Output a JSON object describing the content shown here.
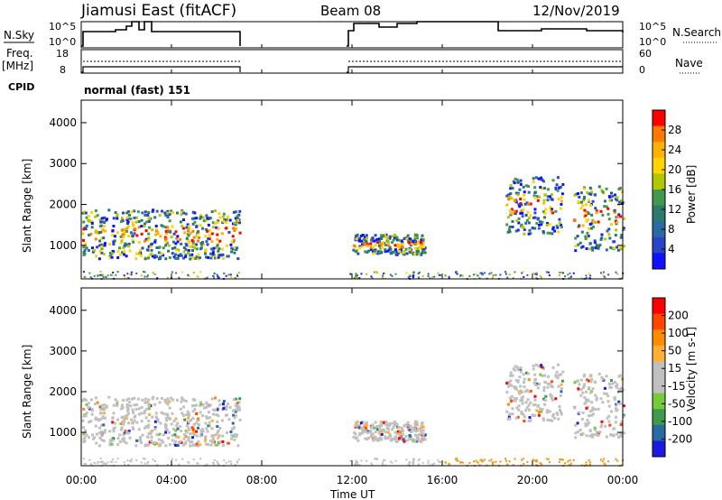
{
  "header": {
    "station": "Jiamusi East (fitACF)",
    "beam": "Beam 08",
    "date": "12/Nov/2019",
    "cpid_label": "CPID",
    "cpid_value": "normal (fast) 151"
  },
  "strip_panels": {
    "nsky": {
      "label": "N.Sky",
      "ticks": [
        "10^5",
        "10^0"
      ]
    },
    "nsearch": {
      "label": "N.Search",
      "ticks": [
        "10^5",
        "10^0"
      ]
    },
    "freq": {
      "label_top": "Freq.",
      "label_bottom": "[MHz]",
      "ticks": [
        "18",
        "8"
      ]
    },
    "nave": {
      "label": "Nave",
      "ticks": [
        "60",
        "0"
      ]
    }
  },
  "chart_data": [
    {
      "type": "heatmap",
      "name": "power",
      "ylabel": "Slant Range [km]",
      "xlabel": "Time UT",
      "ylim": [
        180,
        4550
      ],
      "yticks": [
        1000,
        2000,
        3000,
        4000
      ],
      "xlim_hours": [
        0,
        24
      ],
      "colorbar": {
        "label": "Power [dB]",
        "ticks": [
          "28",
          "24",
          "20",
          "16",
          "12",
          "8",
          "4"
        ],
        "colors": [
          "#ff0000",
          "#ff7a00",
          "#ffb300",
          "#ffd400",
          "#b0c800",
          "#3f9a4d",
          "#2c7a6b",
          "#2a6aa2",
          "#2844c8",
          "#1010ff"
        ]
      },
      "echo_regions": [
        {
          "t_start": 0.0,
          "t_end": 7.0,
          "range_low": 700,
          "range_high": 1900
        },
        {
          "t_start": 12.0,
          "t_end": 15.2,
          "range_low": 800,
          "range_high": 1300
        },
        {
          "t_start": 18.8,
          "t_end": 21.3,
          "range_low": 1300,
          "range_high": 2700
        },
        {
          "t_start": 21.8,
          "t_end": 24.0,
          "range_low": 900,
          "range_high": 2500
        }
      ]
    },
    {
      "type": "heatmap",
      "name": "velocity",
      "ylabel": "Slant Range [km]",
      "xlabel": "Time UT",
      "ylim": [
        180,
        4550
      ],
      "yticks": [
        1000,
        2000,
        3000,
        4000
      ],
      "colorbar": {
        "label": "Velocity [m s-1]",
        "ticks": [
          "200",
          "100",
          "50",
          "15",
          "-15",
          "-50",
          "-100",
          "-200"
        ],
        "colors": [
          "#ff0000",
          "#ff4500",
          "#ff8c00",
          "#ffb030",
          "#c0c0c0",
          "#c0c0c0",
          "#74cc3c",
          "#3f9a4d",
          "#2a6aa2",
          "#1a1ae0"
        ]
      },
      "dominant_color": "#c0c0c0"
    }
  ],
  "x_axis": {
    "title": "Time UT",
    "tick_labels": [
      "00:00",
      "04:00",
      "08:00",
      "12:00",
      "16:00",
      "20:00",
      "00:00"
    ]
  }
}
